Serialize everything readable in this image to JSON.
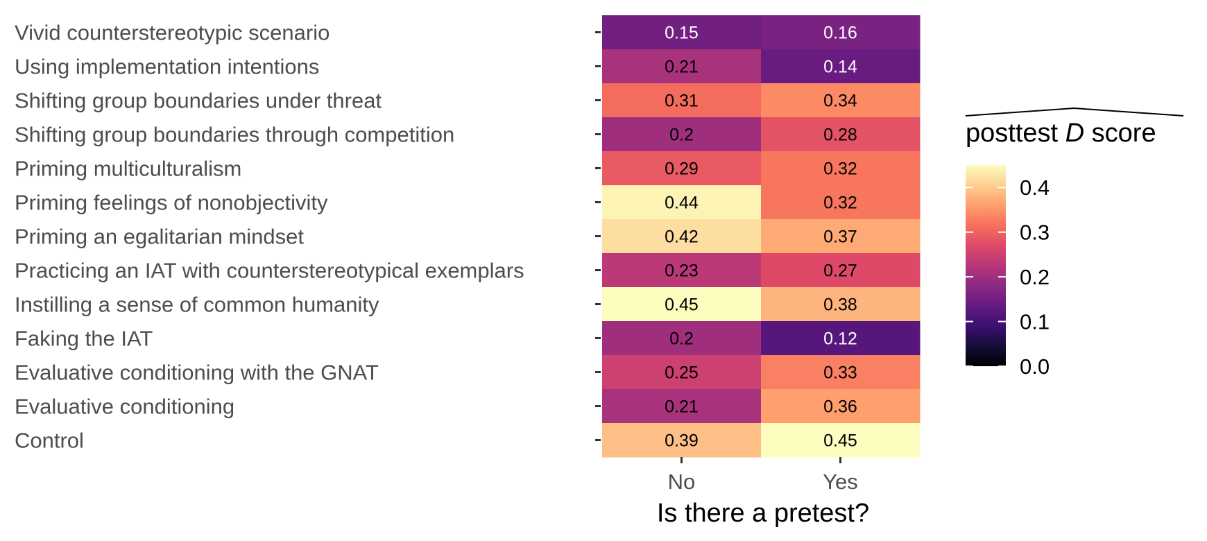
{
  "chart_data": {
    "type": "heatmap",
    "title": "",
    "xlabel": "Is there a pretest?",
    "ylabel": "",
    "x_categories": [
      "No",
      "Yes"
    ],
    "y_categories": [
      "Vivid counterstereotypic scenario",
      "Using implementation intentions",
      "Shifting group boundaries under threat",
      "Shifting group boundaries through competition",
      "Priming multiculturalism",
      "Priming feelings of nonobjectivity",
      "Priming an egalitarian mindset",
      "Practicing an IAT with counterstereotypical exemplars",
      "Instilling a sense of common humanity",
      "Faking the IAT",
      "Evaluative conditioning with the GNAT",
      "Evaluative conditioning",
      "Control"
    ],
    "values": [
      [
        0.15,
        0.16
      ],
      [
        0.21,
        0.14
      ],
      [
        0.31,
        0.34
      ],
      [
        0.2,
        0.28
      ],
      [
        0.29,
        0.32
      ],
      [
        0.44,
        0.32
      ],
      [
        0.42,
        0.37
      ],
      [
        0.23,
        0.27
      ],
      [
        0.45,
        0.38
      ],
      [
        0.2,
        0.12
      ],
      [
        0.25,
        0.33
      ],
      [
        0.21,
        0.36
      ],
      [
        0.39,
        0.45
      ]
    ],
    "cell_labels": [
      [
        "0.15",
        "0.16"
      ],
      [
        "0.21",
        "0.14"
      ],
      [
        "0.31",
        "0.34"
      ],
      [
        "0.2",
        "0.28"
      ],
      [
        "0.29",
        "0.32"
      ],
      [
        "0.44",
        "0.32"
      ],
      [
        "0.42",
        "0.37"
      ],
      [
        "0.23",
        "0.27"
      ],
      [
        "0.45",
        "0.38"
      ],
      [
        "0.2",
        "0.12"
      ],
      [
        "0.25",
        "0.33"
      ],
      [
        "0.21",
        "0.36"
      ],
      [
        "0.39",
        "0.45"
      ]
    ],
    "legend": {
      "title_prefix": "posttest ",
      "title_italic": "D",
      "title_suffix": " score",
      "ticks": [
        "0.0",
        "0.1",
        "0.2",
        "0.3",
        "0.4"
      ],
      "tick_values": [
        0,
        0.1,
        0.2,
        0.3,
        0.4
      ],
      "range": [
        0,
        0.45
      ],
      "colormap": "magma",
      "placement": "right"
    }
  }
}
